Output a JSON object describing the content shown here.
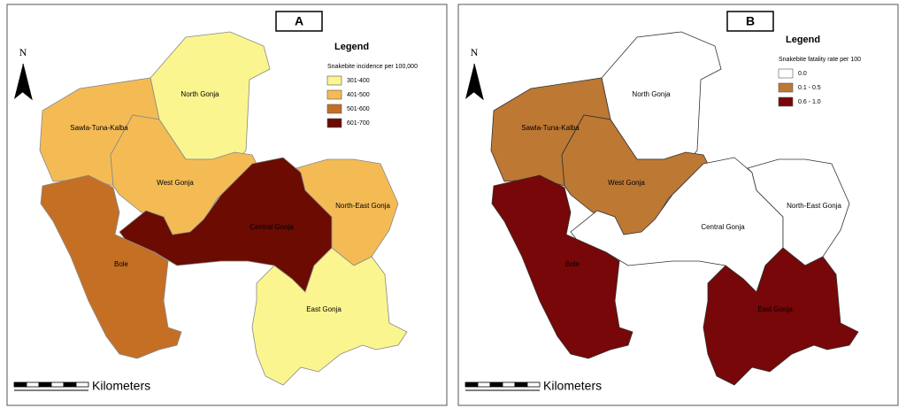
{
  "panels": [
    {
      "label": "A",
      "north": "N",
      "scale_unit": "Kilometers",
      "legend": {
        "title": "Legend",
        "subtitle": "Snakebite incidence per 100,000",
        "items": [
          {
            "label": "301-400",
            "color": "#fbf58f"
          },
          {
            "label": "401-500",
            "color": "#f4bb55"
          },
          {
            "label": "501-600",
            "color": "#c56f25"
          },
          {
            "label": "601-700",
            "color": "#6b0b02"
          }
        ]
      },
      "regions": [
        {
          "name": "North Gonja",
          "color": "#fbf58f"
        },
        {
          "name": "Sawla-Tuna-Kalba",
          "color": "#f4bb55"
        },
        {
          "name": "West Gonja",
          "color": "#f4bb55"
        },
        {
          "name": "Central Gonja",
          "color": "#6b0b02"
        },
        {
          "name": "North-East Gonja",
          "color": "#f4bb55"
        },
        {
          "name": "Bole",
          "color": "#c56f25"
        },
        {
          "name": "East Gonja",
          "color": "#fbf58f"
        }
      ]
    },
    {
      "label": "B",
      "north": "N",
      "scale_unit": "Kilometers",
      "legend": {
        "title": "Legend",
        "subtitle": "Snakebite fatality rate per 100",
        "items": [
          {
            "label": "0.0",
            "color": "#ffffff"
          },
          {
            "label": "0.1 - 0.5",
            "color": "#bd7834"
          },
          {
            "label": "0.6 - 1.0",
            "color": "#770708"
          }
        ]
      },
      "regions": [
        {
          "name": "North Gonja",
          "color": "#ffffff"
        },
        {
          "name": "Sawla-Tuna-Kalba",
          "color": "#bd7834"
        },
        {
          "name": "West Gonja",
          "color": "#bd7834"
        },
        {
          "name": "Central Gonja",
          "color": "#ffffff"
        },
        {
          "name": "North-East Gonja",
          "color": "#ffffff"
        },
        {
          "name": "Bole",
          "color": "#770708"
        },
        {
          "name": "East Gonja",
          "color": "#770708"
        }
      ]
    }
  ]
}
